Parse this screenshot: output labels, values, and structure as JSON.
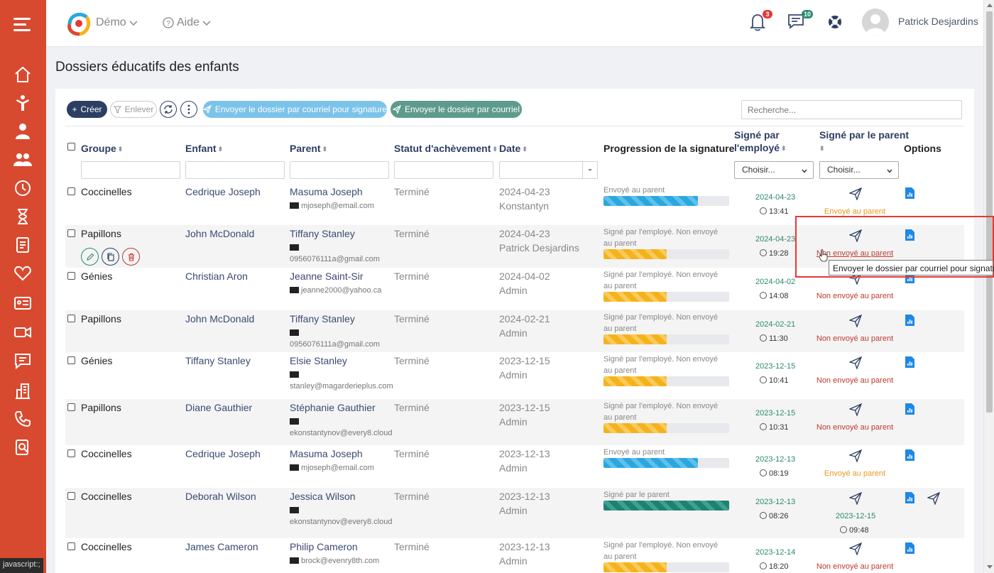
{
  "app": {
    "title": "Dossiers éducatifs des enfants"
  },
  "topbar": {
    "menu_demo": "Démo",
    "menu_help": "Aide",
    "notifications_count": "3",
    "messages_count": "10",
    "user_name": "Patrick Desjardins"
  },
  "toolbar": {
    "create_label": "Créer",
    "remove_label": "Enlever",
    "send_signature_label": "Envoyer le dossier par courriel pour signature",
    "send_mail_label": "Envoyer le dossier par courriel",
    "search_placeholder": "Recherche..."
  },
  "table": {
    "headers": {
      "group": "Groupe",
      "child": "Enfant",
      "parent": "Parent",
      "status": "Statut d'achèvement",
      "date": "Date",
      "progress": "Progression de la signature",
      "signed_employee_1": "Signé par",
      "signed_employee_2": "l'employé",
      "signed_parent": "Signé par le parent",
      "options": "Options"
    },
    "select_placeholder": "Choisir...",
    "rows": [
      {
        "group": "Coccinelles",
        "child": "Cedrique Joseph",
        "parent": "Masuma Joseph",
        "email": "mjoseph@email.com",
        "status": "Terminé",
        "date": "2024-04-23",
        "by": "Konstantyn",
        "progress_text": "Envoyé au parent",
        "progress_pct": 75,
        "progress_color": "blue",
        "emp_date": "2024-04-23",
        "emp_time": "13:41",
        "parent_status": "Envoyé au parent",
        "parent_status_color": "orange"
      },
      {
        "group": "Papillons",
        "child": "John McDonald",
        "parent": "Tiffany Stanley",
        "email": "0956076111a@gmail.com",
        "status": "Terminé",
        "date": "2024-04-23",
        "by": "Patrick Desjardins",
        "progress_text": "Signé par l'employé. Non envoyé au parent",
        "progress_pct": 50,
        "progress_color": "yellow",
        "emp_date": "2024-04-23",
        "emp_time": "19:28",
        "parent_status": "Non envoyé au parent",
        "parent_status_color": "red"
      },
      {
        "group": "Génies",
        "child": "Christian Aron",
        "parent": "Jeanne Saint-Sir",
        "email": "jeanne2000@yahoo.ca",
        "status": "Terminé",
        "date": "2024-04-02",
        "by": "Admin",
        "progress_text": "Signé par l'employé. Non envoyé au parent",
        "progress_pct": 50,
        "progress_color": "yellow",
        "emp_date": "2024-04-02",
        "emp_time": "14:08",
        "parent_status": "Non envoyé au parent",
        "parent_status_color": "red"
      },
      {
        "group": "Papillons",
        "child": "John McDonald",
        "parent": "Tiffany Stanley",
        "email": "0956076111a@gmail.com",
        "status": "Terminé",
        "date": "2024-02-21",
        "by": "Admin",
        "progress_text": "Signé par l'employé. Non envoyé au parent",
        "progress_pct": 50,
        "progress_color": "yellow",
        "emp_date": "2024-02-21",
        "emp_time": "11:30",
        "parent_status": "Non envoyé au parent",
        "parent_status_color": "red"
      },
      {
        "group": "Génies",
        "child": "Tiffany Stanley",
        "parent": "Elsie Stanley",
        "email": "stanley@magarderieplus.com",
        "status": "Terminé",
        "date": "2023-12-15",
        "by": "Admin",
        "progress_text": "Signé par l'employé. Non envoyé au parent",
        "progress_pct": 50,
        "progress_color": "yellow",
        "emp_date": "2023-12-15",
        "emp_time": "10:41",
        "parent_status": "Non envoyé au parent",
        "parent_status_color": "red"
      },
      {
        "group": "Papillons",
        "child": "Diane Gauthier",
        "parent": "Stéphanie Gauthier",
        "email": "ekonstantynov@every8.cloud",
        "status": "Terminé",
        "date": "2023-12-15",
        "by": "Admin",
        "progress_text": "Signé par l'employé. Non envoyé au parent",
        "progress_pct": 50,
        "progress_color": "yellow",
        "emp_date": "2023-12-15",
        "emp_time": "10:31",
        "parent_status": "Non envoyé au parent",
        "parent_status_color": "red"
      },
      {
        "group": "Coccinelles",
        "child": "Cedrique Joseph",
        "parent": "Masuma Joseph",
        "email": "mjoseph@email.com",
        "status": "Terminé",
        "date": "2023-12-13",
        "by": "Admin",
        "progress_text": "Envoyé au parent",
        "progress_pct": 75,
        "progress_color": "blue",
        "emp_date": "2023-12-13",
        "emp_time": "08:19",
        "parent_status": "Envoyé au parent",
        "parent_status_color": "orange"
      },
      {
        "group": "Coccinelles",
        "child": "Deborah Wilson",
        "parent": "Jessica Wilson",
        "email": "ekonstantynov@every8.cloud",
        "status": "Terminé",
        "date": "2023-12-13",
        "by": "Admin",
        "progress_text": "Signé par le parent",
        "progress_pct": 100,
        "progress_color": "teal",
        "emp_date": "2023-12-13",
        "emp_time": "08:26",
        "parent_status": "",
        "parent_status_color": "",
        "parent_date": "2023-12-15",
        "parent_time": "09:48"
      },
      {
        "group": "Coccinelles",
        "child": "James Cameron",
        "parent": "Philip Cameron",
        "email": "brock@evenry8th.com",
        "status": "Terminé",
        "date": "2023-12-13",
        "by": "Admin",
        "progress_text": "Signé par l'employé. Non envoyé au parent",
        "progress_pct": 50,
        "progress_color": "yellow",
        "emp_date": "2023-12-14",
        "emp_time": "18:20",
        "parent_status": "Non envoyé au parent",
        "parent_status_color": "red"
      }
    ]
  },
  "tooltip": {
    "text": "Envoyer le dossier par courriel pour signature"
  },
  "statusbar": {
    "text": "javascript:;"
  },
  "colors": {
    "sidebar": "#d84a30",
    "primary": "#2d3e63",
    "accent_blue": "#7cc3ea",
    "accent_teal": "#5e9b8c"
  }
}
